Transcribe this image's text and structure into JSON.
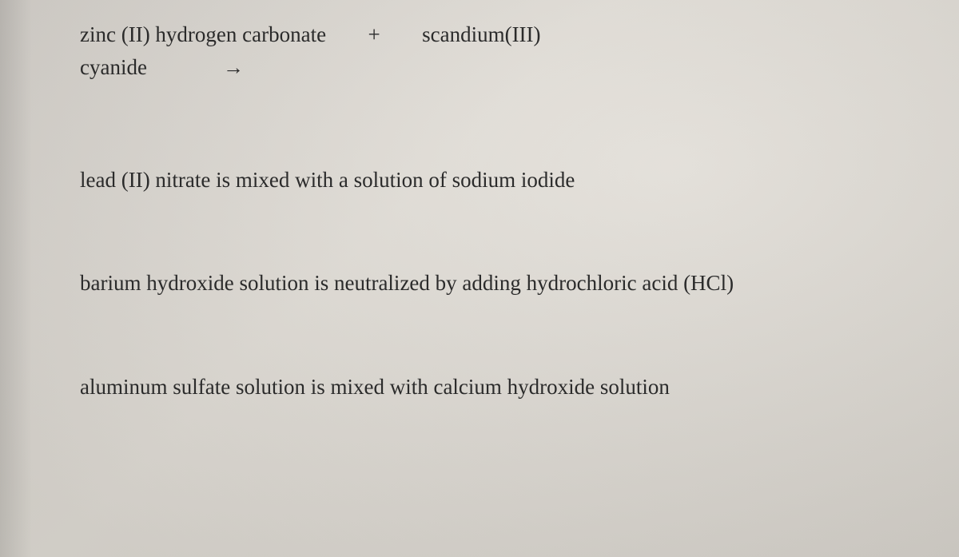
{
  "page": {
    "background_gradient": [
      "#d8d4ce",
      "#e2ded7",
      "#d6d2cb"
    ],
    "text_color": "#2b2b2b",
    "font_family": "Georgia, 'Times New Roman', Times, serif",
    "base_fontsize_pt": 20
  },
  "problems": {
    "p1": {
      "reactant1": "zinc (II) hydrogen carbonate",
      "plus": "+",
      "reactant2": "scandium(III)",
      "line2_word": "cyanide",
      "arrow": "→"
    },
    "p2": {
      "text": "lead (II) nitrate is mixed with a solution of sodium iodide"
    },
    "p3": {
      "text": "barium hydroxide solution is neutralized by adding hydrochloric acid (HCl)"
    },
    "p4": {
      "text": "aluminum sulfate solution is mixed with calcium hydroxide solution"
    }
  }
}
